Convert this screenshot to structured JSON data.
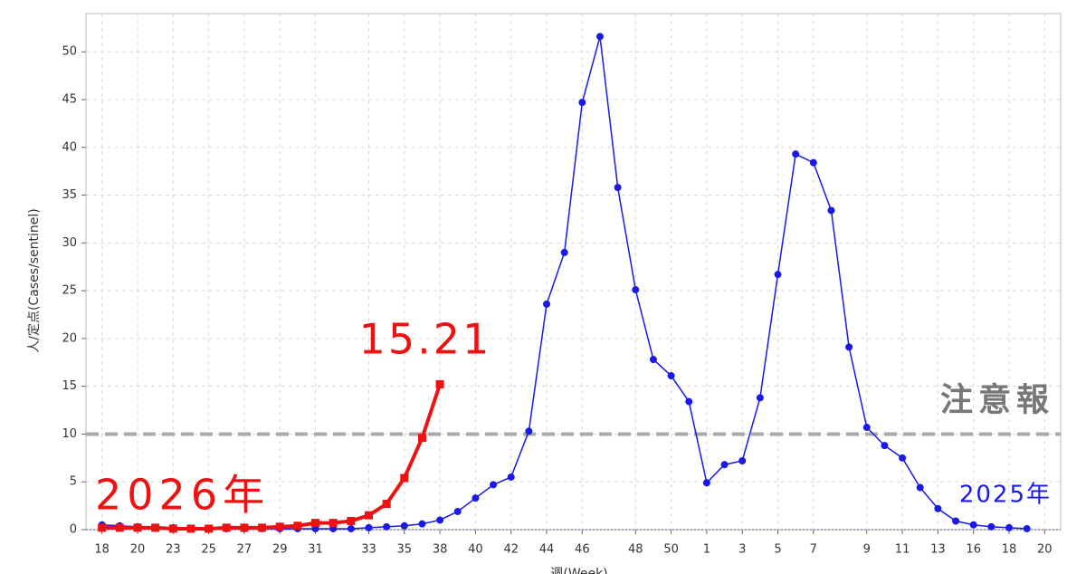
{
  "chart_data": {
    "type": "line",
    "ylabel": "人/定点(Cases/sentinel)",
    "xlabel": "週(Week)",
    "categories": [
      "18",
      null,
      "20",
      null,
      "23",
      null,
      "25",
      null,
      "27",
      null,
      "29",
      null,
      "31",
      null,
      null,
      "33",
      null,
      "35",
      null,
      "38",
      null,
      "40",
      null,
      "42",
      null,
      "44",
      null,
      "46",
      null,
      null,
      "48",
      null,
      "50",
      null,
      "1",
      null,
      "3",
      null,
      "5",
      null,
      "7",
      null,
      null,
      "9",
      null,
      "11",
      null,
      "13",
      null,
      "16",
      null,
      "18",
      null,
      "20"
    ],
    "series": [
      {
        "name": "2025年",
        "color": "#1a1ae6",
        "values": [
          0.5,
          0.4,
          0.3,
          0.2,
          0.2,
          0.1,
          0.1,
          0.1,
          0.1,
          0.1,
          0.1,
          0.1,
          0.1,
          0.1,
          0.1,
          0.2,
          0.3,
          0.4,
          0.6,
          1.0,
          1.9,
          3.3,
          4.7,
          5.5,
          10.3,
          23.6,
          29.0,
          44.7,
          51.6,
          35.8,
          25.1,
          17.8,
          16.1,
          13.4,
          4.9,
          6.8,
          7.2,
          13.8,
          26.7,
          39.3,
          38.4,
          33.4,
          19.1,
          10.7,
          8.8,
          7.5,
          4.4,
          2.2,
          0.9,
          0.5,
          0.3,
          0.2,
          0.1,
          null
        ]
      },
      {
        "name": "2026年",
        "color": "#ee1111",
        "values": [
          0.2,
          0.2,
          0.2,
          0.2,
          0.1,
          0.1,
          0.1,
          0.2,
          0.2,
          0.2,
          0.3,
          0.4,
          0.7,
          0.7,
          0.9,
          1.5,
          2.7,
          5.4,
          9.6,
          15.21,
          null,
          null,
          null,
          null,
          null,
          null,
          null,
          null,
          null,
          null,
          null,
          null,
          null,
          null,
          null,
          null,
          null,
          null,
          null,
          null,
          null,
          null,
          null,
          null,
          null,
          null,
          null,
          null,
          null,
          null,
          null,
          null,
          null,
          null
        ]
      }
    ],
    "last_label": "15.21",
    "threshold": {
      "value": 10,
      "label": "注意報"
    },
    "ylim": [
      0,
      54
    ],
    "yticks": [
      0,
      5,
      10,
      15,
      20,
      25,
      30,
      35,
      40,
      45,
      50
    ],
    "grid": true
  }
}
